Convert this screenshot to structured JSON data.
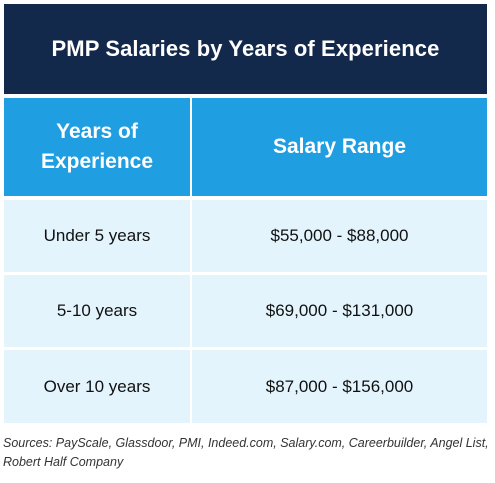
{
  "title": "PMP Salaries by Years of Experience",
  "columns": {
    "experience_header": "Years of Experience",
    "salary_header": "Salary Range"
  },
  "rows": [
    {
      "experience": "Under 5 years",
      "salary": "$55,000 - $88,000"
    },
    {
      "experience": "5-10 years",
      "salary": "$69,000 - $131,000"
    },
    {
      "experience": "Over 10 years",
      "salary": "$87,000 - $156,000"
    }
  ],
  "sources": "Sources: PayScale, Glassdoor, PMI, Indeed.com, Salary.com, Careerbuilder, Angel List, Robert Half Company",
  "colors": {
    "title_bg": "#13294b",
    "header_bg": "#1f9ee2",
    "row_bg": "#e4f4fd"
  }
}
